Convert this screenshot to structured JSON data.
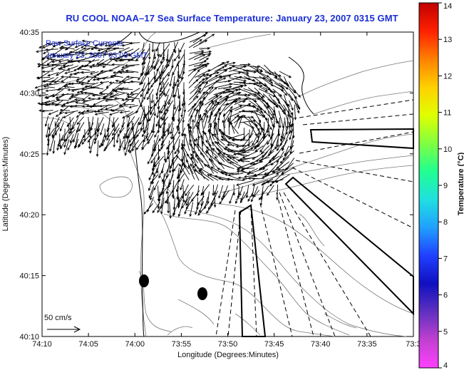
{
  "title": "RU COOL  NOAA–17  Sea Surface Temperature:  January 23, 2007 0315 GMT",
  "annotation": {
    "line1": "Raw Surface Currents",
    "line2": "January 23, 2007 03:00 GMT"
  },
  "scale_label": "50 cm/s",
  "x_axis": {
    "label": "Longitude (Degrees:Minutes)",
    "ticks": [
      "74:10",
      "74:05",
      "74:00",
      "73:55",
      "73:50",
      "73:45",
      "73:40",
      "73:35",
      "73:3"
    ]
  },
  "y_axis": {
    "label": "Latitude (Degrees:Minutes)",
    "ticks": [
      "40:35",
      "40:30",
      "40:25",
      "40:20",
      "40:15",
      "40:10"
    ]
  },
  "colorbar": {
    "label": "Temperature (°C)",
    "ticks": [
      "14",
      "13",
      "12",
      "11",
      "10",
      "9",
      "8",
      "7",
      "6",
      "5",
      "4"
    ],
    "colors": [
      "#c00000",
      "#ff2000",
      "#ff8000",
      "#ffd000",
      "#e0ff00",
      "#80ff40",
      "#20ff90",
      "#20e0e0",
      "#20a0ff",
      "#2040ff",
      "#1010c0",
      "#6030c0",
      "#c040d0",
      "#ff40ff"
    ]
  }
}
